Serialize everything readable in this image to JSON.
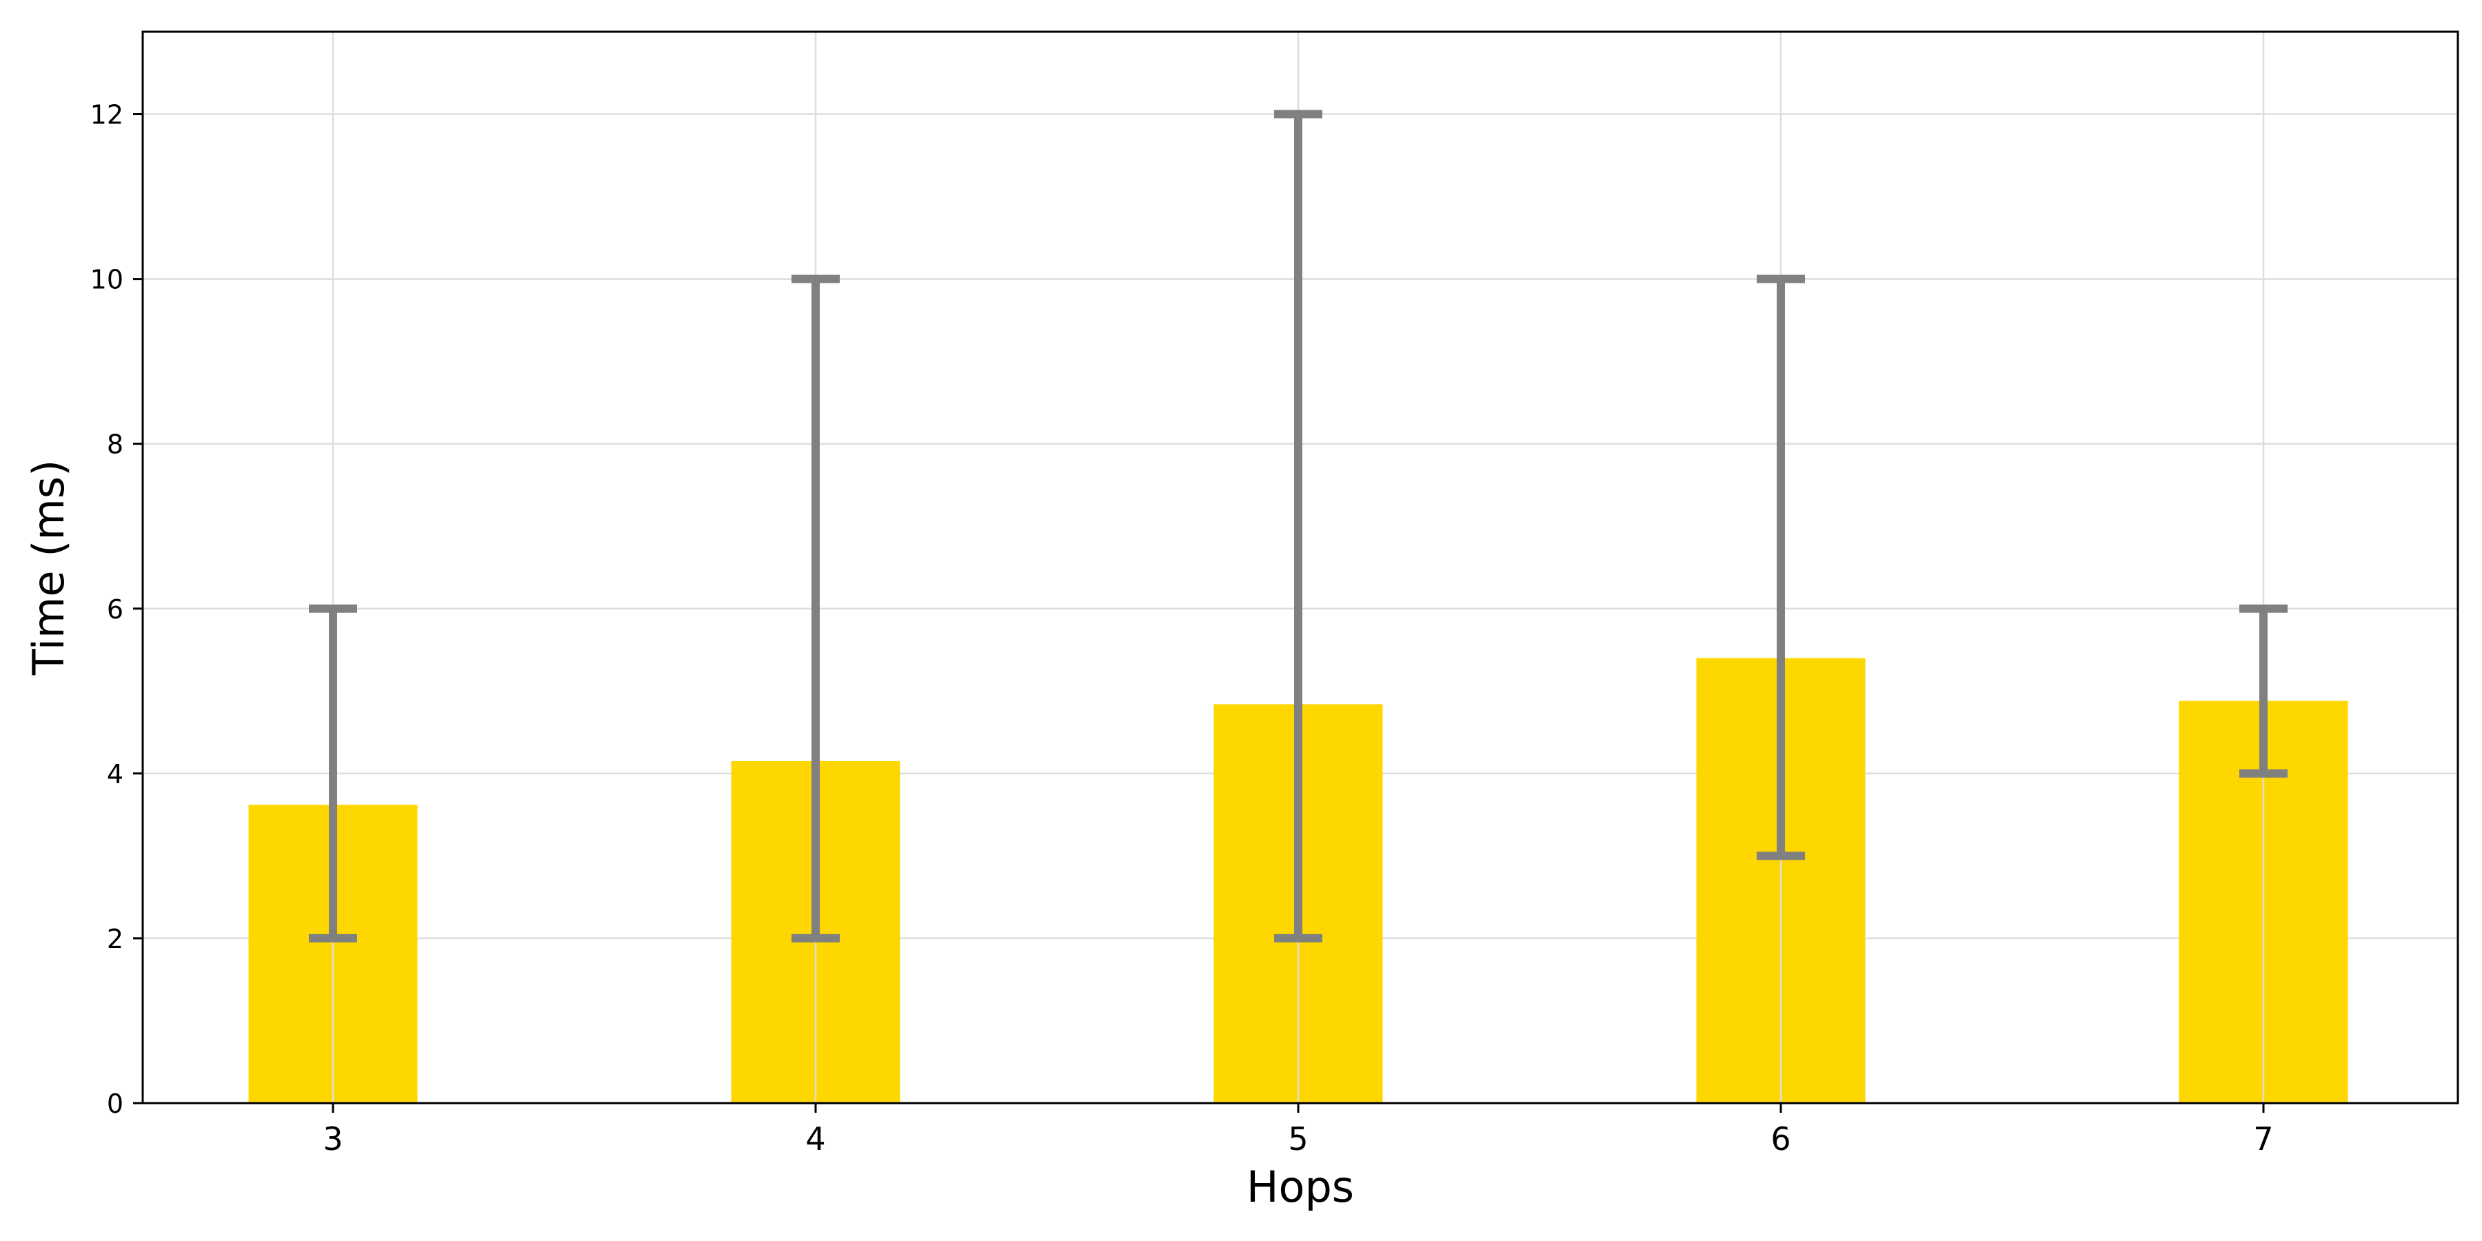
{
  "chart_data": {
    "type": "bar",
    "xlabel": "Hops",
    "ylabel": "Time (ms)",
    "categories": [
      "3",
      "4",
      "5",
      "6",
      "7"
    ],
    "values": [
      3.62,
      4.15,
      4.84,
      5.4,
      4.88
    ],
    "error_low": [
      2,
      2,
      2,
      3,
      4
    ],
    "error_high": [
      6,
      10,
      12,
      10,
      6
    ],
    "ylim": [
      0,
      13
    ],
    "yticks": [
      0,
      2,
      4,
      6,
      8,
      10,
      12
    ],
    "ytick_labels": [
      "0",
      "2",
      "4",
      "6",
      "8",
      "10",
      "12"
    ],
    "grid": true,
    "legend": "none",
    "colors": {
      "bar": "#FFD700",
      "errorbar": "#808080",
      "grid": "#dddddd",
      "axis": "#000000"
    }
  }
}
